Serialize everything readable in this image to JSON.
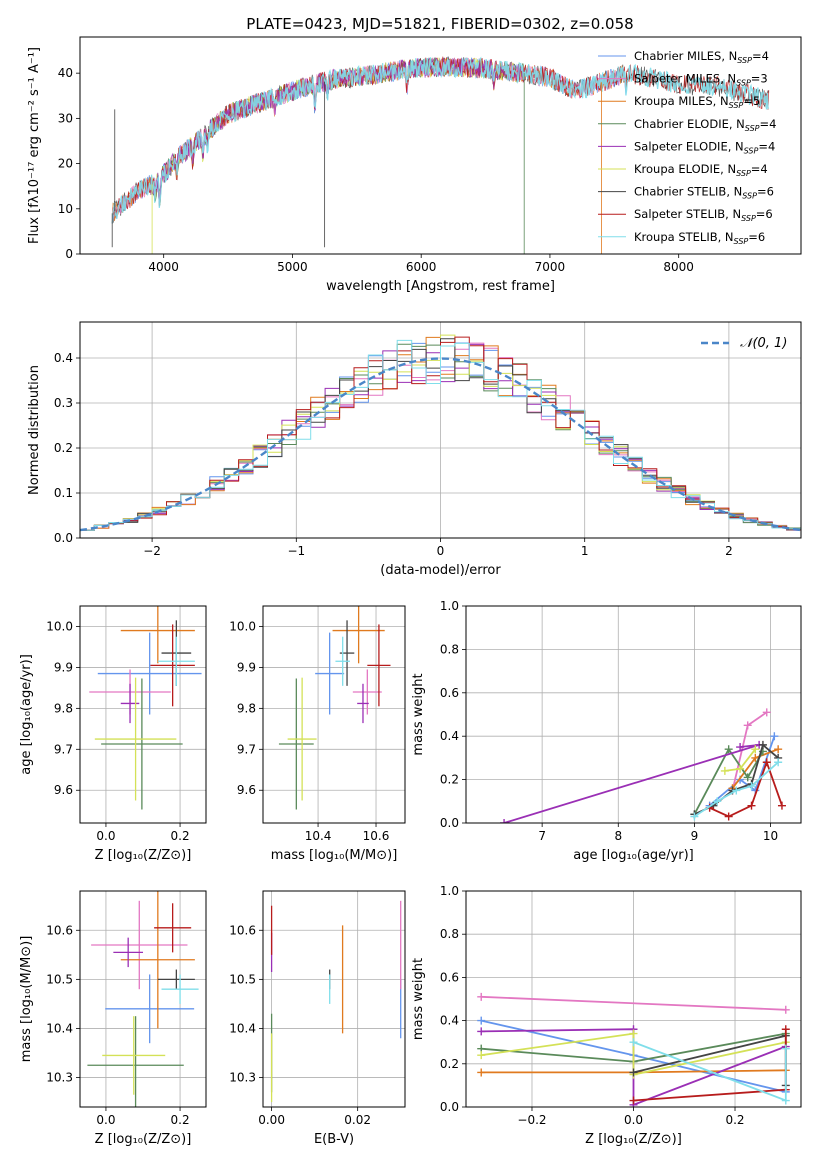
{
  "title": "PLATE=0423, MJD=51821, FIBERID=0302, z=0.058",
  "colors": [
    "#6495ed",
    "#e377c2",
    "#e07a1f",
    "#5a8a5a",
    "#9a2fb5",
    "#d4e157",
    "#444444",
    "#b71c1c",
    "#80deea"
  ],
  "chart_data": [
    {
      "id": "spectrum",
      "type": "line",
      "xlabel": "wavelength [Angstrom, rest frame]",
      "ylabel": "Flux [fλ10⁻¹⁷ erg cm⁻² s⁻¹ A⁻¹]",
      "xlim": [
        3350,
        8950
      ],
      "ylim": [
        0,
        48
      ],
      "xticks": [
        4000,
        5000,
        6000,
        7000,
        8000
      ],
      "yticks": [
        0,
        10,
        20,
        30,
        40
      ],
      "grid": false,
      "legend": "top-right",
      "series": [
        {
          "name": "Chabrier MILES, N_SSP=4",
          "x_range": [
            3600,
            7600
          ]
        },
        {
          "name": "Salpeter MILES, N_SSP=3",
          "x_range": [
            3600,
            7600
          ]
        },
        {
          "name": "Kroupa MILES, N_SSP=5",
          "x_range": [
            3600,
            7600
          ]
        },
        {
          "name": "Chabrier ELODIE, N_SSP=4",
          "x_range": [
            3900,
            6800
          ]
        },
        {
          "name": "Salpeter ELODIE, N_SSP=4",
          "x_range": [
            3900,
            6800
          ]
        },
        {
          "name": "Kroupa ELODIE, N_SSP=4",
          "x_range": [
            3900,
            6800
          ]
        },
        {
          "name": "Chabrier STELIB, N_SSP=6",
          "x_range": [
            3600,
            8700
          ]
        },
        {
          "name": "Salpeter STELIB, N_SSP=6",
          "x_range": [
            3600,
            8700
          ]
        },
        {
          "name": "Kroupa STELIB, N_SSP=6",
          "x_range": [
            3600,
            8700
          ]
        }
      ],
      "continuum": [
        [
          3600,
          9
        ],
        [
          3800,
          14
        ],
        [
          3950,
          16
        ],
        [
          4100,
          21
        ],
        [
          4300,
          26
        ],
        [
          4500,
          31
        ],
        [
          4700,
          33
        ],
        [
          4900,
          35
        ],
        [
          5100,
          37
        ],
        [
          5300,
          38.5
        ],
        [
          5600,
          39.5
        ],
        [
          5900,
          41
        ],
        [
          6200,
          41.5
        ],
        [
          6500,
          41
        ],
        [
          6800,
          40
        ],
        [
          7000,
          39
        ],
        [
          7200,
          36
        ],
        [
          7400,
          38
        ],
        [
          7600,
          40
        ],
        [
          7800,
          39
        ],
        [
          8000,
          37.5
        ],
        [
          8300,
          37
        ],
        [
          8700,
          34
        ]
      ],
      "dips": [
        [
          3934,
          3
        ],
        [
          3969,
          5
        ],
        [
          4102,
          3
        ],
        [
          4227,
          4
        ],
        [
          4305,
          4
        ],
        [
          4341,
          3
        ],
        [
          4861,
          3
        ],
        [
          5175,
          5
        ],
        [
          5270,
          3
        ],
        [
          5890,
          4
        ],
        [
          6563,
          3
        ],
        [
          7590,
          3
        ]
      ]
    },
    {
      "id": "residuals",
      "type": "histogram",
      "xlabel": "(data-model)/error",
      "ylabel": "Normed distribution",
      "xlim": [
        -2.5,
        2.5
      ],
      "ylim": [
        0,
        0.48
      ],
      "xticks": [
        -2,
        -1,
        0,
        1,
        2
      ],
      "xtick_labels": [
        "−2",
        "−1",
        "0",
        "1",
        "2"
      ],
      "yticks": [
        0,
        0.1,
        0.2,
        0.3,
        0.4
      ],
      "ytick_labels": [
        "0.0",
        "0.1",
        "0.2",
        "0.3",
        "0.4"
      ],
      "grid": true,
      "legend": "top-right",
      "legend_label": "𝒩(0, 1)",
      "bin_width": 0.1
    },
    {
      "id": "age-vs-Z",
      "type": "scatter",
      "xlabel": "Z [log₁₀(Z/Z⊙)]",
      "ylabel": "age  [log₁₀(age/yr)]",
      "xlim": [
        -0.07,
        0.27
      ],
      "ylim": [
        9.52,
        10.05
      ],
      "xticks": [
        0.0,
        0.2
      ],
      "xtick_labels": [
        "0.0",
        "0.2"
      ],
      "yticks": [
        9.6,
        9.7,
        9.8,
        9.9,
        10.0
      ],
      "ytick_labels": [
        "9.6",
        "9.7",
        "9.8",
        "9.9",
        "10.0"
      ],
      "points": [
        {
          "series": 0,
          "x": 0.118,
          "y": 9.885,
          "xerr": 0.14,
          "yerr": 0.1
        },
        {
          "series": 1,
          "x": 0.065,
          "y": 9.84,
          "xerr": 0.11,
          "yerr": 0.055
        },
        {
          "series": 2,
          "x": 0.14,
          "y": 9.99,
          "xerr": 0.1,
          "yerr": 0.08
        },
        {
          "series": 3,
          "x": 0.097,
          "y": 9.713,
          "xerr": 0.11,
          "yerr": 0.16
        },
        {
          "series": 4,
          "x": 0.065,
          "y": 9.812,
          "xerr": 0.025,
          "yerr": 0.048
        },
        {
          "series": 5,
          "x": 0.08,
          "y": 9.725,
          "xerr": 0.11,
          "yerr": 0.15
        },
        {
          "series": 6,
          "x": 0.19,
          "y": 9.935,
          "xerr": 0.04,
          "yerr": 0.08
        },
        {
          "series": 7,
          "x": 0.18,
          "y": 9.905,
          "xerr": 0.06,
          "yerr": 0.1
        },
        {
          "series": 8,
          "x": 0.19,
          "y": 9.915,
          "xerr": 0.05,
          "yerr": 0.06
        }
      ]
    },
    {
      "id": "age-vs-mass",
      "type": "scatter",
      "xlabel": "mass [log₁₀(M/M⊙)]",
      "xlim": [
        10.21,
        10.7
      ],
      "ylim": [
        9.52,
        10.05
      ],
      "xticks": [
        10.4,
        10.6
      ],
      "xtick_labels": [
        "10.4",
        "10.6"
      ],
      "yticks": [
        9.6,
        9.7,
        9.8,
        9.9,
        10.0
      ],
      "ytick_labels": [
        "9.6",
        "9.7",
        "9.8",
        "9.9",
        "10.0"
      ],
      "points": [
        {
          "series": 0,
          "x": 10.44,
          "y": 9.885,
          "xerr": 0.05,
          "yerr": 0.1
        },
        {
          "series": 1,
          "x": 10.57,
          "y": 9.84,
          "xerr": 0.05,
          "yerr": 0.055
        },
        {
          "series": 2,
          "x": 10.54,
          "y": 9.99,
          "xerr": 0.09,
          "yerr": 0.08
        },
        {
          "series": 3,
          "x": 10.325,
          "y": 9.713,
          "xerr": 0.06,
          "yerr": 0.16
        },
        {
          "series": 4,
          "x": 10.555,
          "y": 9.812,
          "xerr": 0.02,
          "yerr": 0.048
        },
        {
          "series": 5,
          "x": 10.345,
          "y": 9.725,
          "xerr": 0.05,
          "yerr": 0.15
        },
        {
          "series": 6,
          "x": 10.5,
          "y": 9.935,
          "xerr": 0.025,
          "yerr": 0.08
        },
        {
          "series": 7,
          "x": 10.61,
          "y": 9.905,
          "xerr": 0.04,
          "yerr": 0.1
        },
        {
          "series": 8,
          "x": 10.485,
          "y": 9.915,
          "xerr": 0.025,
          "yerr": 0.06
        }
      ]
    },
    {
      "id": "weight-vs-age",
      "type": "line",
      "xlabel": "age  [log₁₀(age/yr)]",
      "ylabel": "mass weight",
      "xlim": [
        6.0,
        10.4
      ],
      "ylim": [
        0,
        1
      ],
      "xticks": [
        7,
        8,
        9,
        10
      ],
      "xtick_labels": [
        "7",
        "8",
        "9",
        "10"
      ],
      "yticks": [
        0,
        0.2,
        0.4,
        0.6,
        0.8,
        1.0
      ],
      "ytick_labels": [
        "0.0",
        "0.2",
        "0.4",
        "0.6",
        "0.8",
        "1.0"
      ],
      "series": [
        {
          "color": 0,
          "points": [
            [
              9.2,
              0.08
            ],
            [
              9.6,
              0.2
            ],
            [
              9.8,
              0.15
            ],
            [
              10.05,
              0.4
            ]
          ]
        },
        {
          "color": 1,
          "points": [
            [
              9.5,
              0.15
            ],
            [
              9.7,
              0.45
            ],
            [
              9.95,
              0.51
            ]
          ]
        },
        {
          "color": 2,
          "points": [
            [
              9.5,
              0.16
            ],
            [
              9.8,
              0.3
            ],
            [
              10.1,
              0.34
            ]
          ]
        },
        {
          "color": 3,
          "points": [
            [
              9.0,
              0.04
            ],
            [
              9.45,
              0.34
            ],
            [
              9.7,
              0.21
            ],
            [
              9.9,
              0.33
            ]
          ]
        },
        {
          "color": 4,
          "points": [
            [
              6.5,
              0.0
            ],
            [
              9.85,
              0.36
            ],
            [
              9.6,
              0.35
            ]
          ]
        },
        {
          "color": 5,
          "points": [
            [
              9.4,
              0.24
            ],
            [
              9.6,
              0.25
            ],
            [
              9.8,
              0.34
            ]
          ]
        },
        {
          "color": 6,
          "points": [
            [
              9.0,
              0.04
            ],
            [
              9.25,
              0.08
            ],
            [
              9.5,
              0.15
            ],
            [
              9.75,
              0.18
            ],
            [
              9.9,
              0.36
            ],
            [
              10.1,
              0.3
            ]
          ]
        },
        {
          "color": 7,
          "points": [
            [
              9.2,
              0.07
            ],
            [
              9.45,
              0.03
            ],
            [
              9.75,
              0.08
            ],
            [
              9.95,
              0.28
            ],
            [
              10.15,
              0.08
            ]
          ]
        },
        {
          "color": 8,
          "points": [
            [
              9.0,
              0.03
            ],
            [
              9.3,
              0.1
            ],
            [
              9.55,
              0.15
            ],
            [
              9.75,
              0.17
            ],
            [
              10.1,
              0.28
            ]
          ]
        }
      ]
    },
    {
      "id": "mass-vs-Z",
      "type": "scatter",
      "xlabel": "Z [log₁₀(Z/Z⊙)]",
      "ylabel": "mass [log₁₀(M/M⊙)]",
      "xlim": [
        -0.07,
        0.27
      ],
      "ylim": [
        10.24,
        10.68
      ],
      "xticks": [
        0.0,
        0.2
      ],
      "xtick_labels": [
        "0.0",
        "0.2"
      ],
      "yticks": [
        10.3,
        10.4,
        10.5,
        10.6
      ],
      "ytick_labels": [
        "10.3",
        "10.4",
        "10.5",
        "10.6"
      ],
      "points": [
        {
          "series": 0,
          "x": 0.118,
          "y": 10.44,
          "xerr": 0.12,
          "yerr": 0.07
        },
        {
          "series": 1,
          "x": 0.09,
          "y": 10.57,
          "xerr": 0.13,
          "yerr": 0.09
        },
        {
          "series": 2,
          "x": 0.14,
          "y": 10.54,
          "xerr": 0.1,
          "yerr": 0.14
        },
        {
          "series": 3,
          "x": 0.08,
          "y": 10.325,
          "xerr": 0.13,
          "yerr": 0.1
        },
        {
          "series": 4,
          "x": 0.06,
          "y": 10.555,
          "xerr": 0.04,
          "yerr": 0.03
        },
        {
          "series": 5,
          "x": 0.075,
          "y": 10.345,
          "xerr": 0.085,
          "yerr": 0.08
        },
        {
          "series": 6,
          "x": 0.19,
          "y": 10.5,
          "xerr": 0.05,
          "yerr": 0.02
        },
        {
          "series": 7,
          "x": 0.18,
          "y": 10.605,
          "xerr": 0.05,
          "yerr": 0.05
        },
        {
          "series": 8,
          "x": 0.2,
          "y": 10.48,
          "xerr": 0.05,
          "yerr": 0.03
        }
      ]
    },
    {
      "id": "mass-vs-ebv",
      "type": "scatter",
      "xlabel": "E(B-V)",
      "xlim": [
        -0.002,
        0.031
      ],
      "ylim": [
        10.24,
        10.68
      ],
      "xticks": [
        0.0,
        0.02
      ],
      "xtick_labels": [
        "0.00",
        "0.02"
      ],
      "yticks": [
        10.3,
        10.4,
        10.5,
        10.6
      ],
      "ytick_labels": [
        "10.3",
        "10.4",
        "10.5",
        "10.6"
      ],
      "points": [
        {
          "series": 0,
          "x": 0.03,
          "y": 10.44,
          "xerr": 0,
          "yerr": 0.06
        },
        {
          "series": 1,
          "x": 0.03,
          "y": 10.57,
          "xerr": 0,
          "yerr": 0.09
        },
        {
          "series": 2,
          "x": 0.0165,
          "y": 10.5,
          "xerr": 0,
          "yerr": 0.11
        },
        {
          "series": 3,
          "x": 0.0,
          "y": 10.35,
          "xerr": 0,
          "yerr": 0.08
        },
        {
          "series": 4,
          "x": 0.0,
          "y": 10.555,
          "xerr": 0,
          "yerr": 0.04
        },
        {
          "series": 5,
          "x": 0.0,
          "y": 10.32,
          "xerr": 0,
          "yerr": 0.07
        },
        {
          "series": 6,
          "x": 0.0135,
          "y": 10.5,
          "xerr": 0,
          "yerr": 0.02
        },
        {
          "series": 7,
          "x": 0.0,
          "y": 10.6,
          "xerr": 0,
          "yerr": 0.05
        },
        {
          "series": 8,
          "x": 0.0135,
          "y": 10.48,
          "xerr": 0,
          "yerr": 0.03
        }
      ]
    },
    {
      "id": "weight-vs-Z",
      "type": "line",
      "xlabel": "Z [log₁₀(Z/Z⊙)]",
      "ylabel": "mass weight",
      "xlim": [
        -0.33,
        0.33
      ],
      "ylim": [
        0,
        1
      ],
      "xticks": [
        -0.2,
        0.0,
        0.2
      ],
      "xtick_labels": [
        "−0.2",
        "0.0",
        "0.2"
      ],
      "yticks": [
        0,
        0.2,
        0.4,
        0.6,
        0.8,
        1.0
      ],
      "ytick_labels": [
        "0.0",
        "0.2",
        "0.4",
        "0.6",
        "0.8",
        "1.0"
      ],
      "series": [
        {
          "color": 0,
          "points": [
            [
              -0.3,
              0.4
            ],
            [
              0.0,
              0.24
            ],
            [
              0.3,
              0.07
            ]
          ]
        },
        {
          "color": 1,
          "points": [
            [
              -0.3,
              0.51
            ],
            [
              0.3,
              0.45
            ]
          ]
        },
        {
          "color": 2,
          "points": [
            [
              -0.3,
              0.16
            ],
            [
              0.0,
              0.16
            ],
            [
              0.3,
              0.17
            ]
          ]
        },
        {
          "color": 3,
          "points": [
            [
              -0.3,
              0.27
            ],
            [
              0.0,
              0.21
            ],
            [
              0.3,
              0.34
            ]
          ]
        },
        {
          "color": 4,
          "points": [
            [
              -0.3,
              0.35
            ],
            [
              0.0,
              0.36
            ],
            [
              0.0,
              0.01
            ],
            [
              0.3,
              0.28
            ]
          ]
        },
        {
          "color": 5,
          "points": [
            [
              -0.3,
              0.24
            ],
            [
              0.0,
              0.34
            ],
            [
              0.0,
              0.15
            ],
            [
              0.3,
              0.3
            ]
          ]
        },
        {
          "color": 6,
          "points": [
            [
              0.0,
              0.16
            ],
            [
              0.3,
              0.33
            ],
            [
              0.3,
              0.1
            ]
          ]
        },
        {
          "color": 7,
          "points": [
            [
              0.0,
              0.03
            ],
            [
              0.3,
              0.08
            ],
            [
              0.3,
              0.36
            ]
          ]
        },
        {
          "color": 8,
          "points": [
            [
              0.0,
              0.3
            ],
            [
              0.3,
              0.03
            ],
            [
              0.3,
              0.27
            ]
          ]
        }
      ]
    }
  ]
}
